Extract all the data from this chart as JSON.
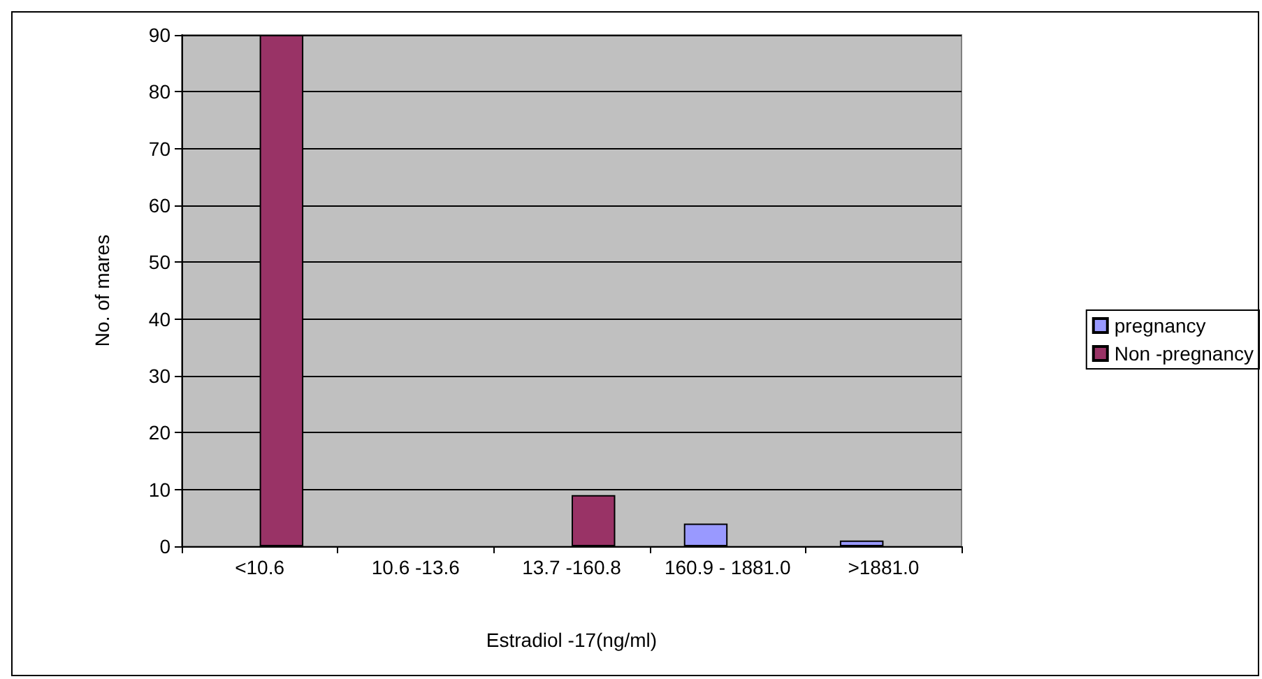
{
  "chart_data": {
    "type": "bar",
    "xlabel": "Estradiol -17(ng/ml)",
    "ylabel": "No. of mares",
    "categories": [
      "<10.6",
      "10.6 -13.6",
      "13.7 -160.8",
      "160.9 - 1881.0",
      ">1881.0"
    ],
    "series": [
      {
        "name": "pregnancy",
        "color": "#9999ff",
        "values": [
          0,
          0,
          0,
          4,
          1
        ]
      },
      {
        "name": "Non -pregnancy",
        "color": "#993366",
        "values": [
          90,
          0,
          9,
          0,
          0
        ]
      }
    ],
    "ylim": [
      0,
      90
    ],
    "yticks": [
      0,
      10,
      20,
      30,
      40,
      50,
      60,
      70,
      80,
      90
    ],
    "grid": "y",
    "legend": "right"
  }
}
